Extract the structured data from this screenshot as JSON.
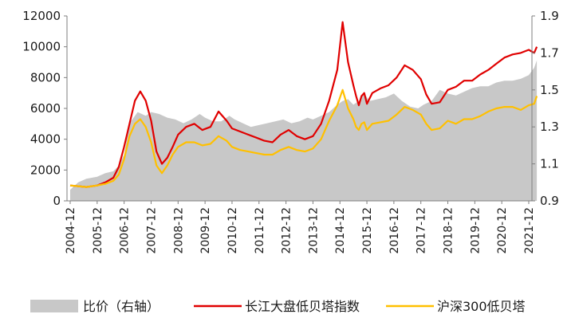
{
  "chart_data": {
    "type": "line",
    "title": "",
    "x_categories": [
      "2004-12",
      "2005-12",
      "2006-12",
      "2007-12",
      "2008-12",
      "2009-12",
      "2010-12",
      "2011-12",
      "2012-12",
      "2013-12",
      "2014-12",
      "2015-12",
      "2016-12",
      "2017-12",
      "2018-12",
      "2019-12",
      "2020-12",
      "2021-12"
    ],
    "left_axis": {
      "min": 0,
      "max": 12000,
      "ticks": [
        "0",
        "2000",
        "4000",
        "6000",
        "8000",
        "10000",
        "12000"
      ]
    },
    "right_axis": {
      "min": 0.9,
      "max": 1.9,
      "ticks": [
        "0.9",
        "1.1",
        "1.3",
        "1.5",
        "1.7",
        "1.9"
      ]
    },
    "grid": false,
    "legend_position": "bottom",
    "series": [
      {
        "name": "比价（右轴）",
        "type": "area",
        "axis": "right",
        "color": "#c8c8c8",
        "x": [
          0,
          0.3,
          0.6,
          1.0,
          1.3,
          1.6,
          1.8,
          2.0,
          2.2,
          2.5,
          2.8,
          3.0,
          3.3,
          3.6,
          3.9,
          4.2,
          4.5,
          4.8,
          5.0,
          5.3,
          5.6,
          5.9,
          6.1,
          6.4,
          6.7,
          7.0,
          7.3,
          7.6,
          7.9,
          8.2,
          8.5,
          8.8,
          9.0,
          9.3,
          9.6,
          9.9,
          10.1,
          10.3,
          10.5,
          10.7,
          10.9,
          11.1,
          11.4,
          11.7,
          12.0,
          12.3,
          12.6,
          12.9,
          13.1,
          13.4,
          13.7,
          14.0,
          14.3,
          14.6,
          14.9,
          15.2,
          15.5,
          15.8,
          16.1,
          16.4,
          16.7,
          17.0,
          17.2,
          17.3
        ],
        "values": [
          0.96,
          1.0,
          1.02,
          1.03,
          1.05,
          1.06,
          1.09,
          1.15,
          1.32,
          1.38,
          1.36,
          1.38,
          1.37,
          1.35,
          1.34,
          1.32,
          1.34,
          1.37,
          1.35,
          1.33,
          1.33,
          1.36,
          1.34,
          1.32,
          1.3,
          1.31,
          1.32,
          1.33,
          1.34,
          1.32,
          1.33,
          1.35,
          1.34,
          1.36,
          1.38,
          1.42,
          1.44,
          1.45,
          1.42,
          1.44,
          1.48,
          1.44,
          1.45,
          1.46,
          1.48,
          1.44,
          1.41,
          1.4,
          1.42,
          1.44,
          1.5,
          1.48,
          1.47,
          1.49,
          1.51,
          1.52,
          1.52,
          1.54,
          1.55,
          1.55,
          1.56,
          1.58,
          1.62,
          1.66
        ]
      },
      {
        "name": "长江大盘低贝塔指数",
        "type": "line",
        "axis": "left",
        "color": "#e00000",
        "x": [
          0,
          0.3,
          0.6,
          1.0,
          1.3,
          1.6,
          1.8,
          2.0,
          2.2,
          2.4,
          2.6,
          2.8,
          3.0,
          3.2,
          3.4,
          3.6,
          3.8,
          4.0,
          4.3,
          4.6,
          4.9,
          5.2,
          5.5,
          5.8,
          6.0,
          6.3,
          6.6,
          6.9,
          7.2,
          7.5,
          7.8,
          8.1,
          8.4,
          8.7,
          9.0,
          9.3,
          9.6,
          9.9,
          10.1,
          10.3,
          10.5,
          10.6,
          10.7,
          10.8,
          10.9,
          11.0,
          11.2,
          11.5,
          11.8,
          12.1,
          12.4,
          12.7,
          13.0,
          13.2,
          13.4,
          13.7,
          14.0,
          14.3,
          14.6,
          14.9,
          15.2,
          15.5,
          15.8,
          16.1,
          16.4,
          16.7,
          17.0,
          17.2,
          17.3
        ],
        "values": [
          1000,
          950,
          900,
          1000,
          1200,
          1500,
          2200,
          3500,
          5000,
          6500,
          7100,
          6500,
          5200,
          3200,
          2400,
          2800,
          3500,
          4300,
          4800,
          5000,
          4600,
          4800,
          5800,
          5200,
          4700,
          4500,
          4300,
          4100,
          3900,
          3800,
          4300,
          4600,
          4200,
          4000,
          4200,
          5000,
          6500,
          8500,
          11600,
          9000,
          7500,
          6800,
          6200,
          6800,
          7000,
          6300,
          7000,
          7300,
          7500,
          8000,
          8800,
          8500,
          7900,
          6900,
          6300,
          6400,
          7200,
          7400,
          7800,
          7800,
          8200,
          8500,
          8900,
          9300,
          9500,
          9600,
          9800,
          9600,
          10000
        ]
      },
      {
        "name": "沪深300低贝塔",
        "type": "line",
        "axis": "left",
        "color": "#ffc000",
        "x": [
          0,
          0.3,
          0.6,
          1.0,
          1.3,
          1.6,
          1.8,
          2.0,
          2.2,
          2.4,
          2.6,
          2.8,
          3.0,
          3.2,
          3.4,
          3.6,
          3.8,
          4.0,
          4.3,
          4.6,
          4.9,
          5.2,
          5.5,
          5.8,
          6.0,
          6.3,
          6.6,
          6.9,
          7.2,
          7.5,
          7.8,
          8.1,
          8.4,
          8.7,
          9.0,
          9.3,
          9.6,
          9.9,
          10.1,
          10.3,
          10.5,
          10.6,
          10.7,
          10.8,
          10.9,
          11.0,
          11.2,
          11.5,
          11.8,
          12.1,
          12.4,
          12.7,
          13.0,
          13.2,
          13.4,
          13.7,
          14.0,
          14.3,
          14.6,
          14.9,
          15.2,
          15.5,
          15.8,
          16.1,
          16.4,
          16.7,
          17.0,
          17.2,
          17.3
        ],
        "values": [
          1000,
          950,
          900,
          1000,
          1100,
          1300,
          1700,
          2700,
          4200,
          5000,
          5300,
          4800,
          3800,
          2300,
          1800,
          2300,
          3000,
          3500,
          3800,
          3800,
          3600,
          3700,
          4200,
          3900,
          3500,
          3300,
          3200,
          3100,
          3000,
          3000,
          3300,
          3500,
          3300,
          3200,
          3400,
          4000,
          5200,
          6200,
          7200,
          6000,
          5300,
          4800,
          4600,
          5000,
          5100,
          4600,
          5000,
          5100,
          5200,
          5600,
          6100,
          5900,
          5600,
          5000,
          4600,
          4700,
          5200,
          5000,
          5300,
          5300,
          5500,
          5800,
          6000,
          6100,
          6100,
          5900,
          6200,
          6300,
          6800
        ]
      }
    ]
  },
  "legend": {
    "ratio_label": "比价（右轴）",
    "cj_label": "长江大盘低贝塔指数",
    "hs_label": "沪深300低贝塔"
  }
}
